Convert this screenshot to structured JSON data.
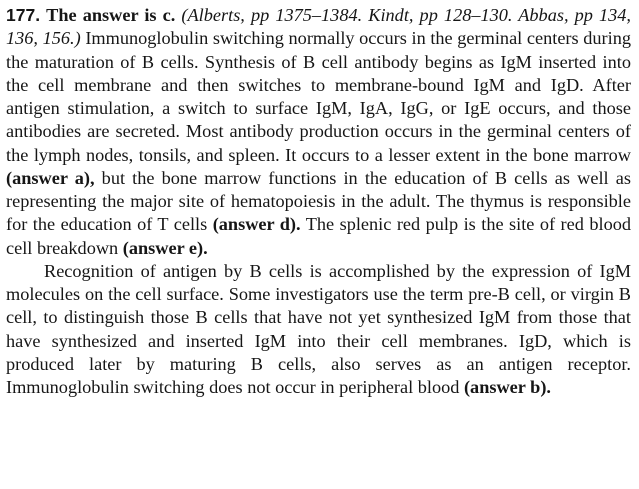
{
  "question_number": "177.",
  "answer_lead": "The answer is c.",
  "citation": "(Alberts, pp 1375–1384. Kindt, pp 128–130. Abbas, pp 134, 136, 156.)",
  "paragraph1": {
    "text_1": " Immunoglobulin switching normally occurs in the germinal centers during the maturation of B cells. Synthesis of B cell antibody begins as IgM inserted into the cell membrane and then switches to membrane-bound IgM and IgD. After antigen stimulation, a switch to surface IgM, IgA, IgG, or IgE occurs, and those antibodies are secreted. Most antibody production occurs in the germinal centers of the lymph nodes, tonsils, and spleen. It occurs to a lesser extent in the bone marrow ",
    "answer_a": "(answer a),",
    "text_2": " but the bone marrow functions in the education of B cells as well as representing the major site of hematopoiesis in the adult. The thymus is responsible for the education of T cells ",
    "answer_d": "(answer d).",
    "text_3": " The splenic red pulp is the site of red blood cell breakdown ",
    "answer_e": "(answer e)."
  },
  "paragraph2": {
    "text_1": "Recognition of antigen by B cells is accomplished by the expression of IgM molecules on the cell surface. Some investigators use the term pre-B cell, or virgin B cell, to distinguish those B cells that have not yet synthesized IgM from those that have synthesized and inserted IgM into their cell membranes. IgD, which is produced later by maturing B cells, also serves as an antigen receptor. Immunoglobulin switching does not occur in peripheral blood ",
    "answer_b": "(answer b)."
  }
}
